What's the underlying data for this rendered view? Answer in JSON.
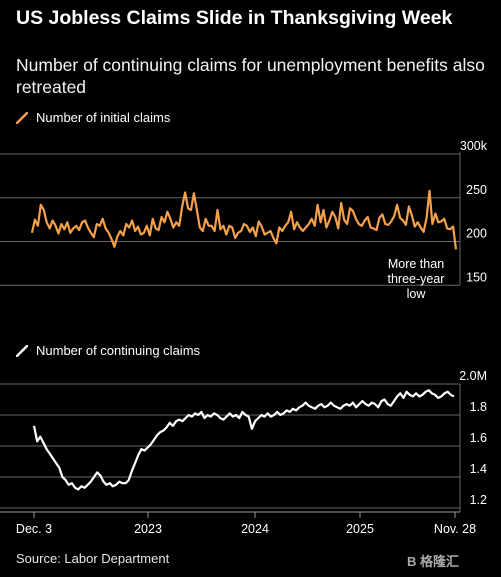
{
  "header": {
    "title": "US Jobless Claims Slide in Thanksgiving Week",
    "subtitle": "Number of continuing claims for unemployment benefits also retreated"
  },
  "footer": {
    "source": "Source: Labor Department",
    "watermark": "B 格隆汇"
  },
  "colors": {
    "initial": "#f5a04a",
    "continuing": "#ffffff",
    "grid": "#666666",
    "background": "#000000"
  },
  "chart_data": [
    {
      "type": "line",
      "legend": "Number of initial claims",
      "y_ticks": [
        "300k",
        "250",
        "200",
        "150"
      ],
      "ylim": [
        140,
        300
      ],
      "annotation": "More than three-year low",
      "series": [
        {
          "name": "Number of initial claims",
          "color": "#f5a04a",
          "values": [
            210,
            225,
            218,
            242,
            236,
            222,
            215,
            224,
            218,
            209,
            220,
            214,
            222,
            210,
            215,
            218,
            213,
            222,
            224,
            216,
            210,
            205,
            220,
            218,
            226,
            215,
            210,
            203,
            194,
            206,
            212,
            207,
            220,
            216,
            224,
            212,
            217,
            208,
            210,
            218,
            207,
            226,
            215,
            213,
            228,
            222,
            234,
            226,
            216,
            222,
            218,
            240,
            256,
            238,
            236,
            255,
            236,
            216,
            212,
            226,
            218,
            218,
            212,
            236,
            214,
            218,
            208,
            218,
            216,
            204,
            210,
            212,
            220,
            218,
            211,
            216,
            206,
            223,
            217,
            208,
            210,
            212,
            204,
            198,
            216,
            212,
            218,
            222,
            234,
            214,
            222,
            216,
            212,
            216,
            220,
            226,
            218,
            242,
            222,
            236,
            216,
            224,
            234,
            228,
            215,
            244,
            225,
            220,
            238,
            235,
            226,
            220,
            218,
            224,
            228,
            216,
            215,
            213,
            227,
            231,
            220,
            219,
            223,
            229,
            242,
            227,
            224,
            219,
            240,
            230,
            217,
            222,
            216,
            211,
            227,
            258,
            220,
            232,
            222,
            223,
            226,
            215,
            214,
            217,
            191
          ]
        }
      ]
    },
    {
      "type": "line",
      "legend": "Number of continuing claims",
      "y_ticks": [
        "2.0M",
        "1.8",
        "1.6",
        "1.4",
        "1.2"
      ],
      "ylim": [
        1.2,
        2.0
      ],
      "x_ticks": [
        "Dec. 3",
        "2023",
        "2024",
        "2025",
        "Nov. 28"
      ],
      "series": [
        {
          "name": "Number of continuing claims",
          "color": "#ffffff",
          "values": [
            1.73,
            1.63,
            1.66,
            1.62,
            1.58,
            1.55,
            1.52,
            1.49,
            1.46,
            1.4,
            1.38,
            1.35,
            1.36,
            1.33,
            1.32,
            1.34,
            1.33,
            1.35,
            1.37,
            1.4,
            1.43,
            1.41,
            1.37,
            1.35,
            1.36,
            1.34,
            1.35,
            1.37,
            1.36,
            1.36,
            1.38,
            1.44,
            1.49,
            1.54,
            1.58,
            1.57,
            1.59,
            1.61,
            1.64,
            1.67,
            1.69,
            1.7,
            1.72,
            1.75,
            1.73,
            1.76,
            1.77,
            1.76,
            1.78,
            1.8,
            1.79,
            1.81,
            1.8,
            1.82,
            1.78,
            1.8,
            1.79,
            1.81,
            1.8,
            1.78,
            1.77,
            1.79,
            1.81,
            1.79,
            1.8,
            1.78,
            1.82,
            1.8,
            1.79,
            1.71,
            1.76,
            1.78,
            1.8,
            1.79,
            1.81,
            1.79,
            1.8,
            1.82,
            1.8,
            1.81,
            1.83,
            1.82,
            1.84,
            1.83,
            1.85,
            1.86,
            1.88,
            1.86,
            1.85,
            1.84,
            1.86,
            1.87,
            1.85,
            1.86,
            1.88,
            1.86,
            1.85,
            1.84,
            1.86,
            1.87,
            1.86,
            1.88,
            1.85,
            1.87,
            1.89,
            1.87,
            1.86,
            1.88,
            1.87,
            1.85,
            1.89,
            1.9,
            1.87,
            1.86,
            1.89,
            1.92,
            1.94,
            1.91,
            1.95,
            1.93,
            1.92,
            1.94,
            1.92,
            1.93,
            1.95,
            1.96,
            1.94,
            1.93,
            1.91,
            1.92,
            1.94,
            1.95,
            1.93,
            1.92
          ]
        }
      ]
    }
  ]
}
